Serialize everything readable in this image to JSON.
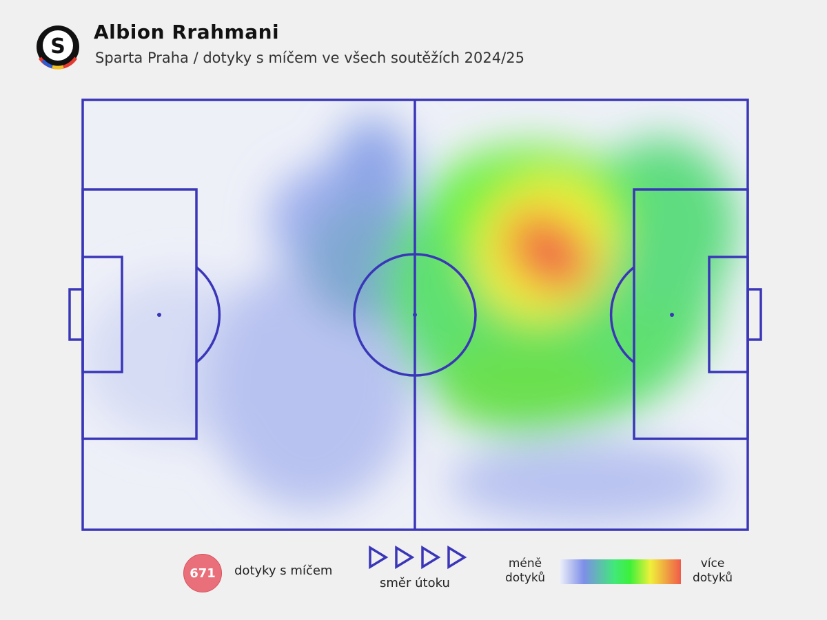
{
  "header": {
    "title": "Albion Rrahmani",
    "subtitle": "Sparta Praha / dotyky s míčem ve všech soutěžích 2024/25",
    "logo_letter": "S"
  },
  "legend": {
    "touches": "671",
    "touches_label": "dotyky s míčem",
    "direction_label": "směr útoku",
    "less": "méně dotyků",
    "more": "více dotyků"
  }
}
